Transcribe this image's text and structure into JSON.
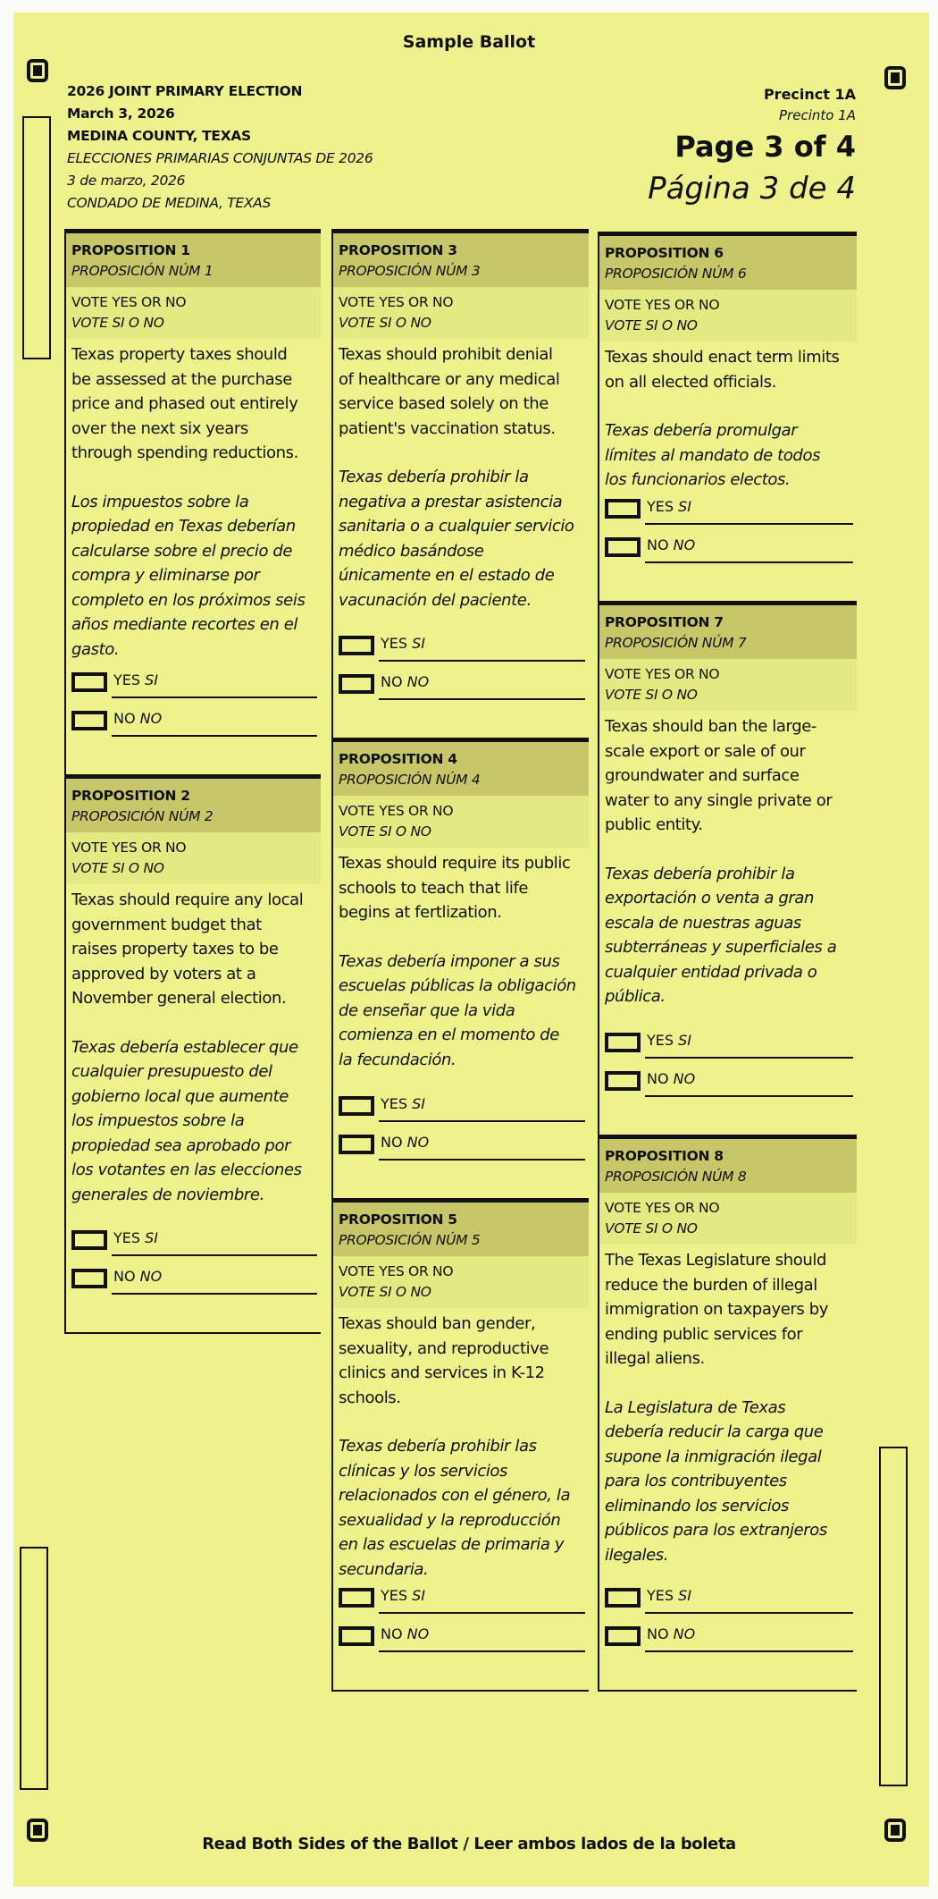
{
  "header": {
    "title": "Sample Ballot",
    "election_en": "2026 JOINT PRIMARY ELECTION",
    "date_en": "March 3, 2026",
    "county_en": "MEDINA COUNTY, TEXAS",
    "election_es": "ELECCIONES PRIMARIAS CONJUNTAS DE 2026",
    "date_es": "3 de marzo, 2026",
    "county_es": "CONDADO DE MEDINA, TEXAS",
    "precinct_en": "Precinct 1A",
    "precinct_es": "Precinto 1A",
    "page_en": "Page 3 of 4",
    "page_es": "Página 3 de 4"
  },
  "footer": "Read Both Sides of the Ballot / Leer ambos lados de la boleta",
  "colors": {
    "paper": "#eef28c",
    "header_band": "#c7c76a",
    "vote_band": "#e3ea82"
  },
  "propositions": [
    {
      "title": "PROPOSITION 1",
      "title_es": "PROPOSICIÓN NÚM 1",
      "vote_en": "VOTE YES OR NO",
      "vote_es": "VOTE SI O NO",
      "text_en": "Texas property taxes should\nbe assessed at the purchase\nprice and phased out entirely\nover the next six years\nthrough spending reductions.",
      "text_es": "Los impuestos sobre la\npropiedad en Texas deberían\ncalcularse sobre el precio de\ncompra y eliminarse por\ncompleto en los próximos seis\naños mediante recortes en el\ngasto.",
      "yes": "YES",
      "yes_es": "SI",
      "no": "NO",
      "no_es": "NO"
    },
    {
      "title": "PROPOSITION 2",
      "title_es": "PROPOSICIÓN NÚM 2",
      "vote_en": "VOTE YES OR NO",
      "vote_es": "VOTE SI O NO",
      "text_en": "Texas should require any local\ngovernment budget that\nraises property taxes to be\napproved by voters at a\nNovember general election.",
      "text_es": "Texas debería establecer que\ncualquier presupuesto del\ngobierno local que aumente\nlos impuestos sobre la\npropiedad sea aprobado por\nlos votantes en las elecciones\ngenerales de noviembre.",
      "yes": "YES",
      "yes_es": "SI",
      "no": "NO",
      "no_es": "NO"
    },
    {
      "title": "PROPOSITION 3",
      "title_es": "PROPOSICIÓN NÚM 3",
      "vote_en": "VOTE YES OR NO",
      "vote_es": "VOTE SI O NO",
      "text_en": "Texas should prohibit denial\nof healthcare or any medical\nservice based solely on the\npatient's vaccination status.",
      "text_es": "Texas debería prohibir la\nnegativa a prestar asistencia\nsanitaria o a cualquier servicio\nmédico basándose\núnicamente en el estado de\nvacunación del paciente.",
      "yes": "YES",
      "yes_es": "SI",
      "no": "NO",
      "no_es": "NO"
    },
    {
      "title": "PROPOSITION 4",
      "title_es": "PROPOSICIÓN NÚM 4",
      "vote_en": "VOTE YES OR NO",
      "vote_es": "VOTE SI O NO",
      "text_en": "Texas should require its public\nschools to teach that life\nbegins at fertlization.",
      "text_es": "Texas debería imponer a sus\nescuelas públicas la obligación\nde enseñar que la vida\ncomienza en el momento de\nla fecundación.",
      "yes": "YES",
      "yes_es": "SI",
      "no": "NO",
      "no_es": "NO"
    },
    {
      "title": "PROPOSITION 5",
      "title_es": "PROPOSICIÓN NÚM 5",
      "vote_en": "VOTE YES OR NO",
      "vote_es": "VOTE SI O NO",
      "text_en": "Texas should ban gender,\nsexuality, and reproductive\nclinics and services in K-12\nschools.",
      "text_es": "Texas debería prohibir las\nclínicas y los servicios\nrelacionados con el género, la\nsexualidad y la reproducción\nen las escuelas de primaria y\nsecundaria.",
      "yes": "YES",
      "yes_es": "SI",
      "no": "NO",
      "no_es": "NO"
    },
    {
      "title": "PROPOSITION 6",
      "title_es": "PROPOSICIÓN NÚM 6",
      "vote_en": "VOTE YES OR NO",
      "vote_es": "VOTE SI O NO",
      "text_en": "Texas should enact term limits\non all elected officials.",
      "text_es": "Texas debería promulgar\nlímites al mandato de todos\nlos funcionarios electos.",
      "yes": "YES",
      "yes_es": "SI",
      "no": "NO",
      "no_es": "NO"
    },
    {
      "title": "PROPOSITION 7",
      "title_es": "PROPOSICIÓN NÚM 7",
      "vote_en": "VOTE YES OR NO",
      "vote_es": "VOTE SI O NO",
      "text_en": "Texas should ban the large-\nscale export or sale of our\ngroundwater and surface\nwater to any single private or\npublic entity.",
      "text_es": "Texas debería prohibir la\nexportación o venta a gran\nescala de nuestras aguas\nsubterráneas y superficiales a\ncualquier entidad privada o\npública.",
      "yes": "YES",
      "yes_es": "SI",
      "no": "NO",
      "no_es": "NO"
    },
    {
      "title": "PROPOSITION 8",
      "title_es": "PROPOSICIÓN NÚM 8",
      "vote_en": "VOTE YES OR NO",
      "vote_es": "VOTE SI O NO",
      "text_en": "The Texas Legislature should\nreduce the burden of illegal\nimmigration on taxpayers by\nending public services for\nillegal aliens.",
      "text_es": "La Legislatura de Texas\ndebería reducir la carga que\nsupone la inmigración ilegal\npara los contribuyentes\neliminando los servicios\npúblicos para los extranjeros\nilegales.",
      "yes": "YES",
      "yes_es": "SI",
      "no": "NO",
      "no_es": "NO"
    }
  ]
}
